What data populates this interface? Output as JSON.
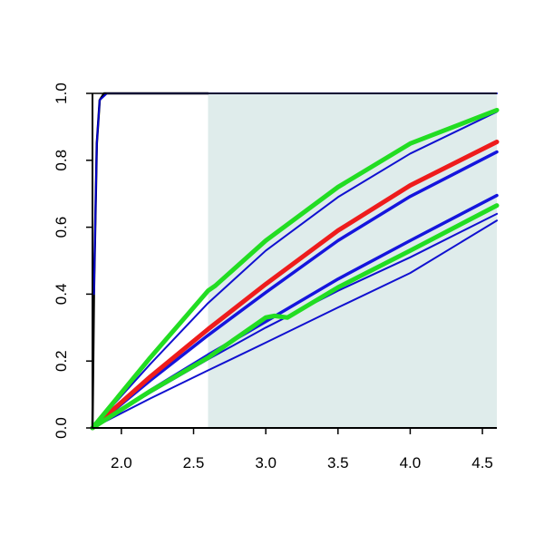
{
  "chart_data": {
    "type": "line",
    "title": "",
    "xlabel": "",
    "ylabel": "",
    "xlim": [
      1.8,
      4.6
    ],
    "ylim": [
      0.0,
      1.0
    ],
    "grid": false,
    "legend": "none",
    "shaded_region": {
      "x_from": 2.6,
      "x_to": 4.6,
      "color": "#dfeceb"
    },
    "x_ticks": [
      "2.0",
      "2.5",
      "3.0",
      "3.5",
      "4.0",
      "4.5"
    ],
    "y_ticks": [
      "0.0",
      "0.2",
      "0.4",
      "0.6",
      "0.8",
      "1.0"
    ],
    "series": [
      {
        "color": "#000000",
        "width": 2.5,
        "points": [
          [
            1.8,
            0.0
          ],
          [
            1.81,
            0.4
          ],
          [
            1.83,
            0.85
          ],
          [
            1.85,
            0.98
          ],
          [
            1.88,
            1.0
          ],
          [
            2.6,
            1.0
          ]
        ]
      },
      {
        "color": "#0000cc",
        "width": 2,
        "points": [
          [
            1.81,
            0.4
          ],
          [
            1.83,
            0.85
          ],
          [
            1.85,
            0.98
          ],
          [
            1.9,
            1.0
          ],
          [
            4.6,
            1.0
          ]
        ]
      },
      {
        "color": "#1010d0",
        "width": 2,
        "points": [
          [
            1.8,
            0.0
          ],
          [
            2.2,
            0.191
          ],
          [
            2.6,
            0.373
          ],
          [
            3.0,
            0.53
          ],
          [
            3.5,
            0.69
          ],
          [
            4.0,
            0.82
          ],
          [
            4.6,
            0.945
          ]
        ]
      },
      {
        "color": "#1010d0",
        "width": 2,
        "points": [
          [
            1.8,
            0.0
          ],
          [
            2.2,
            0.088
          ],
          [
            2.6,
            0.172
          ],
          [
            3.0,
            0.255
          ],
          [
            3.5,
            0.36
          ],
          [
            4.0,
            0.463
          ],
          [
            4.6,
            0.62
          ]
        ]
      },
      {
        "color": "#1010d0",
        "width": 2,
        "points": [
          [
            1.8,
            0.0
          ],
          [
            2.2,
            0.105
          ],
          [
            2.6,
            0.205
          ],
          [
            3.0,
            0.3
          ],
          [
            3.5,
            0.41
          ],
          [
            4.0,
            0.51
          ],
          [
            4.6,
            0.64
          ]
        ]
      },
      {
        "color": "#1515dd",
        "width": 3.5,
        "points": [
          [
            1.8,
            0.0
          ],
          [
            2.2,
            0.142
          ],
          [
            2.6,
            0.277
          ],
          [
            3.0,
            0.405
          ],
          [
            3.5,
            0.56
          ],
          [
            4.0,
            0.692
          ],
          [
            4.6,
            0.825
          ]
        ]
      },
      {
        "color": "#1515dd",
        "width": 3.5,
        "points": [
          [
            1.8,
            0.0
          ],
          [
            2.2,
            0.112
          ],
          [
            2.6,
            0.218
          ],
          [
            3.0,
            0.318
          ],
          [
            3.5,
            0.445
          ],
          [
            4.0,
            0.56
          ],
          [
            4.6,
            0.695
          ]
        ]
      },
      {
        "color": "#ee1c1c",
        "width": 5,
        "points": [
          [
            1.8,
            0.0
          ],
          [
            2.2,
            0.153
          ],
          [
            2.6,
            0.295
          ],
          [
            3.0,
            0.43
          ],
          [
            3.5,
            0.59
          ],
          [
            4.0,
            0.725
          ],
          [
            4.6,
            0.855
          ]
        ]
      },
      {
        "color": "#22dd22",
        "width": 5,
        "points": [
          [
            1.8,
            0.0
          ],
          [
            2.2,
            0.21
          ],
          [
            2.6,
            0.41
          ],
          [
            2.65,
            0.425
          ],
          [
            3.0,
            0.56
          ],
          [
            3.5,
            0.72
          ],
          [
            4.0,
            0.85
          ],
          [
            4.6,
            0.95
          ]
        ]
      },
      {
        "color": "#22dd22",
        "width": 5,
        "points": [
          [
            1.8,
            0.0
          ],
          [
            2.2,
            0.11
          ],
          [
            2.6,
            0.21
          ],
          [
            3.0,
            0.33
          ],
          [
            3.06,
            0.335
          ],
          [
            3.15,
            0.33
          ],
          [
            3.5,
            0.42
          ],
          [
            4.0,
            0.53
          ],
          [
            4.6,
            0.665
          ]
        ]
      }
    ]
  }
}
